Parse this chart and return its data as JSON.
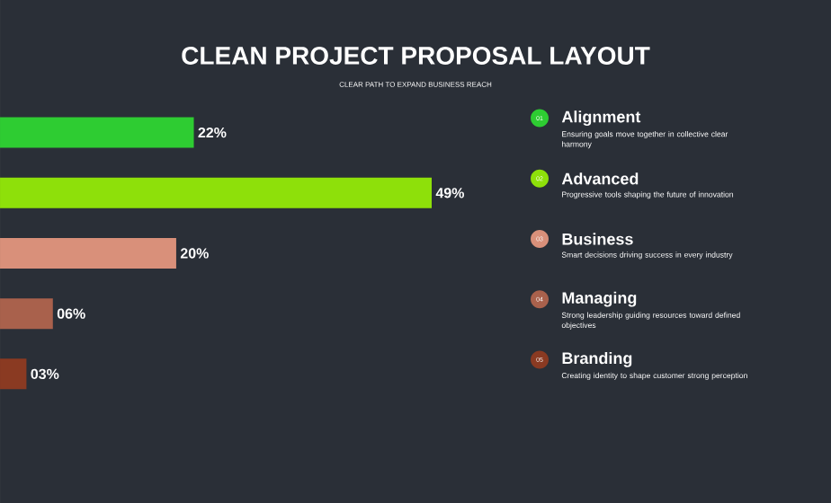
{
  "chart_data": {
    "type": "bar",
    "orientation": "horizontal",
    "title": "CLEAN PROJECT PROPOSAL LAYOUT",
    "subtitle": "CLEAR PATH TO EXPAND BUSINESS REACH",
    "categories": [
      "Alignment",
      "Advanced",
      "Business",
      "Managing",
      "Branding"
    ],
    "values": [
      22,
      49,
      20,
      6,
      3
    ],
    "value_labels": [
      "22%",
      "49%",
      "20%",
      "06%",
      "03%"
    ],
    "colors": [
      "#2ecc32",
      "#8ee00a",
      "#d9907a",
      "#a9614c",
      "#8a3a22"
    ],
    "annotations": [
      "01",
      "Ensuring goals move together in collective clear harmony",
      "02",
      "Progressive tools shaping the future of innovation",
      "03",
      "Smart decisions driving success in every industry",
      "04",
      "Strong leadership guiding resources toward defined objectives",
      "05",
      "Creating identity to shape customer strong perception"
    ]
  }
}
